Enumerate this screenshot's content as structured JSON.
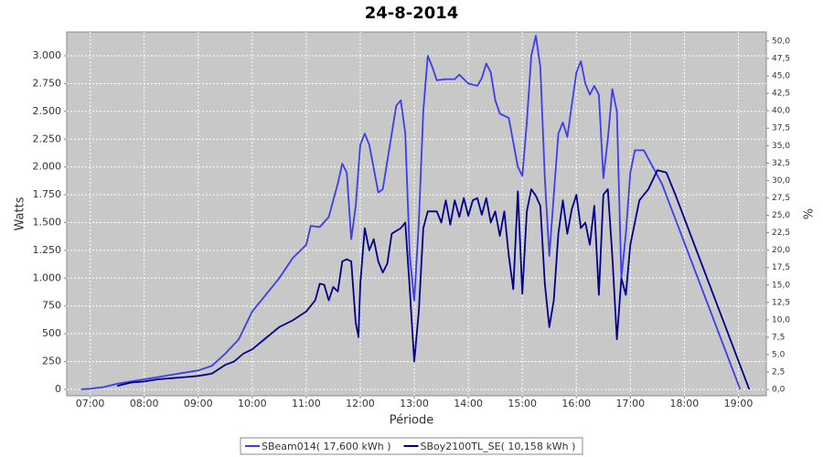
{
  "chart_data": {
    "type": "line",
    "title": "24-8-2014",
    "xlabel": "Période",
    "ylabel": "Watts",
    "y2label": "%",
    "xlim": [
      "06:34",
      "19:31"
    ],
    "xticks": [
      "07:00",
      "08:00",
      "09:00",
      "10:00",
      "11:00",
      "12:00",
      "13:00",
      "14:00",
      "15:00",
      "16:00",
      "17:00",
      "18:00",
      "19:00"
    ],
    "ylim": [
      -58,
      3214
    ],
    "yticks": [
      0,
      250,
      500,
      750,
      {
        "value": 1000,
        "label": "1.000"
      },
      {
        "value": 1250,
        "label": "1.250"
      },
      {
        "value": 1500,
        "label": "1.500"
      },
      {
        "value": 1750,
        "label": "1.750"
      },
      {
        "value": 2000,
        "label": "2.000"
      },
      {
        "value": 2250,
        "label": "2.250"
      },
      {
        "value": 2500,
        "label": "2.500"
      },
      {
        "value": 2750,
        "label": "2.750"
      },
      {
        "value": 3000,
        "label": "3.000"
      }
    ],
    "y2lim": [
      -0.9,
      51.3
    ],
    "y2ticks": [
      {
        "value": 0,
        "label": "0,0"
      },
      {
        "value": 2.5,
        "label": "2,5"
      },
      {
        "value": 5,
        "label": "5,0"
      },
      {
        "value": 7.5,
        "label": "7,5"
      },
      {
        "value": 10,
        "label": "10,0"
      },
      {
        "value": 12.5,
        "label": "12,5"
      },
      {
        "value": 15,
        "label": "15,0"
      },
      {
        "value": 17.5,
        "label": "17,5"
      },
      {
        "value": 20,
        "label": "20,0"
      },
      {
        "value": 22.5,
        "label": "22,5"
      },
      {
        "value": 25,
        "label": "25,0"
      },
      {
        "value": 27.5,
        "label": "27,5"
      },
      {
        "value": 30,
        "label": "30,0"
      },
      {
        "value": 32.5,
        "label": "32,5"
      },
      {
        "value": 35,
        "label": "35,0"
      },
      {
        "value": 37.5,
        "label": "37,5"
      },
      {
        "value": 40,
        "label": "40,0"
      },
      {
        "value": 42.5,
        "label": "42,5"
      },
      {
        "value": 45,
        "label": "45,0"
      },
      {
        "value": 47.5,
        "label": "47,5"
      },
      {
        "value": 50,
        "label": "50,0"
      }
    ],
    "grid": true,
    "series": [
      {
        "name": "SBeam014( 17,600 kWh )",
        "color": "#3c3cf0",
        "x": [
          "06:50",
          "07:00",
          "07:15",
          "07:30",
          "07:45",
          "08:00",
          "08:15",
          "08:30",
          "08:45",
          "09:00",
          "09:15",
          "09:30",
          "09:45",
          "10:00",
          "10:15",
          "10:30",
          "10:45",
          "11:00",
          "11:05",
          "11:15",
          "11:25",
          "11:35",
          "11:40",
          "11:45",
          "11:50",
          "11:55",
          "12:00",
          "12:05",
          "12:10",
          "12:20",
          "12:25",
          "12:35",
          "12:40",
          "12:45",
          "12:50",
          "12:55",
          "13:00",
          "13:05",
          "13:10",
          "13:15",
          "13:20",
          "13:25",
          "13:35",
          "13:45",
          "13:50",
          "14:00",
          "14:10",
          "14:15",
          "14:20",
          "14:25",
          "14:30",
          "14:35",
          "14:45",
          "14:55",
          "15:00",
          "15:05",
          "15:10",
          "15:15",
          "15:20",
          "15:25",
          "15:30",
          "15:40",
          "15:45",
          "15:50",
          "16:00",
          "16:05",
          "16:10",
          "16:15",
          "16:20",
          "16:25",
          "16:30",
          "16:35",
          "16:40",
          "16:45",
          "16:50",
          "16:55",
          "17:00",
          "17:05",
          "17:15",
          "17:25",
          "17:35",
          "19:02"
        ],
        "values": [
          0,
          5,
          20,
          50,
          70,
          90,
          110,
          130,
          150,
          170,
          210,
          320,
          450,
          700,
          850,
          1000,
          1180,
          1300,
          1470,
          1460,
          1550,
          1850,
          2030,
          1950,
          1350,
          1650,
          2200,
          2300,
          2200,
          1770,
          1800,
          2300,
          2550,
          2600,
          2300,
          1200,
          800,
          1500,
          2500,
          3000,
          2900,
          2780,
          2790,
          2790,
          2830,
          2750,
          2730,
          2800,
          2930,
          2850,
          2600,
          2480,
          2440,
          2000,
          1920,
          2400,
          3000,
          3180,
          2900,
          1900,
          1200,
          2300,
          2400,
          2270,
          2850,
          2950,
          2750,
          2650,
          2730,
          2650,
          1900,
          2250,
          2700,
          2500,
          1000,
          1400,
          1950,
          2150,
          2150,
          2000,
          1850,
          0
        ]
      },
      {
        "name": "SBoy2100TL_SE( 10,158 kWh )",
        "color": "#00008c",
        "x": [
          "07:30",
          "07:45",
          "08:00",
          "08:15",
          "08:30",
          "08:45",
          "09:00",
          "09:15",
          "09:30",
          "09:40",
          "09:50",
          "10:00",
          "10:15",
          "10:30",
          "10:45",
          "11:00",
          "11:05",
          "11:10",
          "11:15",
          "11:20",
          "11:25",
          "11:30",
          "11:35",
          "11:40",
          "11:45",
          "11:50",
          "11:55",
          "11:58",
          "12:00",
          "12:05",
          "12:10",
          "12:15",
          "12:20",
          "12:25",
          "12:30",
          "12:35",
          "12:45",
          "12:50",
          "12:55",
          "13:00",
          "13:05",
          "13:10",
          "13:15",
          "13:25",
          "13:30",
          "13:35",
          "13:40",
          "13:45",
          "13:50",
          "13:55",
          "14:00",
          "14:05",
          "14:10",
          "14:15",
          "14:20",
          "14:25",
          "14:30",
          "14:35",
          "14:40",
          "14:45",
          "14:50",
          "14:55",
          "15:00",
          "15:05",
          "15:10",
          "15:15",
          "15:20",
          "15:25",
          "15:30",
          "15:35",
          "15:40",
          "15:45",
          "15:50",
          "15:55",
          "16:00",
          "16:05",
          "16:10",
          "16:15",
          "16:20",
          "16:25",
          "16:30",
          "16:35",
          "16:40",
          "16:45",
          "16:50",
          "16:55",
          "17:00",
          "17:10",
          "17:20",
          "17:30",
          "17:40",
          "17:50",
          "19:12"
        ],
        "values": [
          30,
          60,
          70,
          90,
          100,
          110,
          120,
          140,
          220,
          250,
          320,
          360,
          460,
          560,
          620,
          700,
          750,
          800,
          950,
          940,
          800,
          920,
          880,
          1150,
          1170,
          1150,
          600,
          470,
          950,
          1450,
          1250,
          1350,
          1150,
          1050,
          1130,
          1400,
          1450,
          1500,
          900,
          250,
          700,
          1450,
          1600,
          1600,
          1500,
          1700,
          1480,
          1700,
          1550,
          1720,
          1560,
          1700,
          1720,
          1570,
          1720,
          1500,
          1600,
          1380,
          1600,
          1200,
          900,
          1780,
          860,
          1600,
          1800,
          1740,
          1650,
          950,
          560,
          800,
          1400,
          1700,
          1400,
          1620,
          1750,
          1450,
          1500,
          1300,
          1650,
          850,
          1750,
          1800,
          1200,
          450,
          1000,
          850,
          1300,
          1700,
          1800,
          1970,
          1950,
          1750,
          0
        ]
      }
    ]
  }
}
